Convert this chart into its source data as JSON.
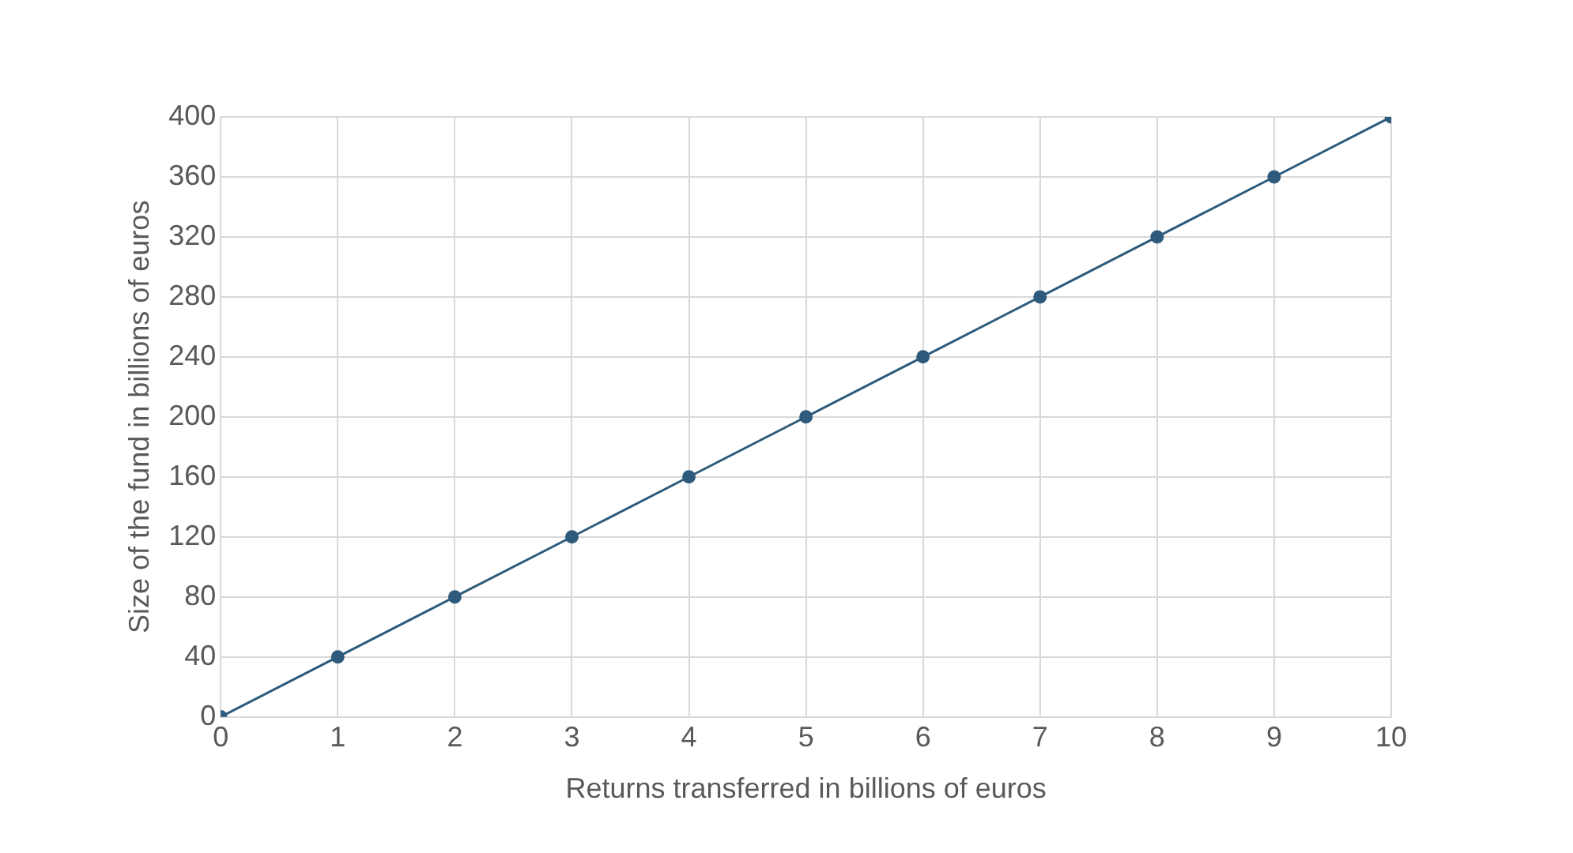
{
  "chart_data": {
    "type": "line",
    "xlabel": "Returns transferred in billions of euros",
    "ylabel": "Size of the fund in billions of euros",
    "x": [
      0,
      1,
      2,
      3,
      4,
      5,
      6,
      7,
      8,
      9,
      10
    ],
    "series": [
      {
        "color": "#2e5b7c",
        "values": [
          0,
          40,
          80,
          120,
          160,
          200,
          240,
          280,
          320,
          360,
          400
        ]
      }
    ],
    "xlim": [
      0,
      10
    ],
    "xticks": [
      0,
      1,
      2,
      3,
      4,
      5,
      6,
      7,
      8,
      9,
      10
    ],
    "ylim": [
      0,
      400
    ],
    "yticks": [
      0,
      40,
      80,
      120,
      160,
      200,
      240,
      280,
      320,
      360,
      400
    ],
    "grid": true,
    "legend": false,
    "marker": "circle",
    "line_style": "solid"
  }
}
